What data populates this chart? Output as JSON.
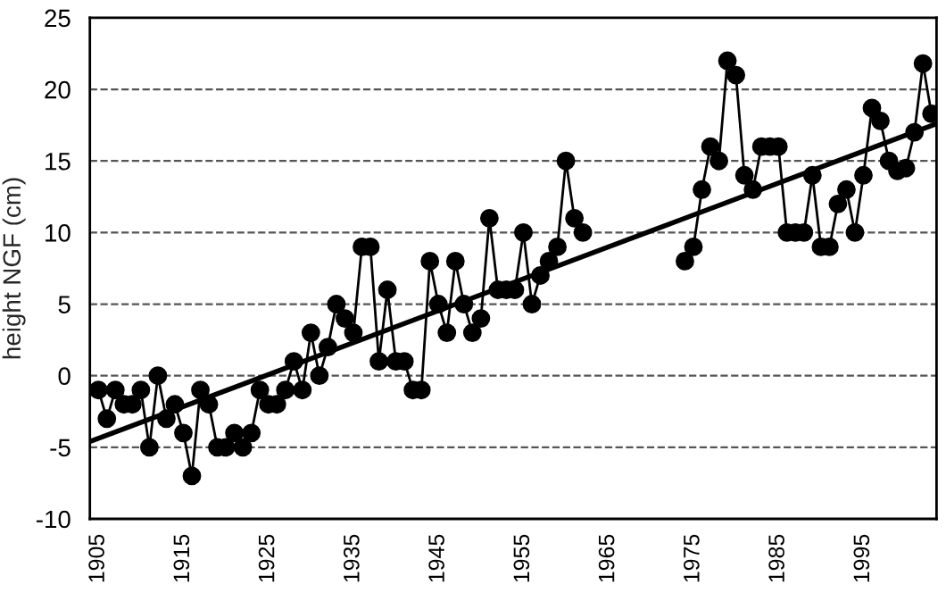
{
  "chart_data": {
    "type": "line",
    "ylabel": "height NGF (cm)",
    "xlim": [
      1904,
      2003.6
    ],
    "xticks": [
      1905,
      1915,
      1925,
      1935,
      1945,
      1955,
      1965,
      1975,
      1985,
      1995
    ],
    "ylim": [
      -10,
      25
    ],
    "yticks": [
      -10,
      -5,
      0,
      5,
      10,
      15,
      20,
      25
    ],
    "grid": "y",
    "marker": "circle",
    "line_style": "solid",
    "series": [
      {
        "color": "#000000",
        "x": [
          1905,
          1906,
          1907,
          1908,
          1909,
          1910,
          1911,
          1912,
          1913,
          1914,
          1915,
          1916,
          1917,
          1918,
          1919,
          1920,
          1921,
          1922,
          1923,
          1924,
          1925,
          1926,
          1927,
          1928,
          1929,
          1930,
          1931,
          1932,
          1933,
          1934,
          1935,
          1936,
          1937,
          1938,
          1939,
          1940,
          1941,
          1942,
          1943,
          1944,
          1945,
          1946,
          1947,
          1948,
          1949,
          1950,
          1951,
          1952,
          1953,
          1954,
          1955,
          1956,
          1957,
          1958,
          1959,
          1960,
          1961,
          1962,
          1963,
          1964,
          1965,
          1966,
          1967,
          1968,
          1969,
          1970,
          1971,
          1972,
          1973,
          1974,
          1975,
          1976,
          1977,
          1978,
          1979,
          1980,
          1981,
          1982,
          1983,
          1984,
          1985,
          1986,
          1987,
          1988,
          1989,
          1990,
          1991,
          1992,
          1993,
          1994,
          1995,
          1996,
          1997,
          1998,
          1999,
          2000,
          2001,
          2002,
          2003
        ],
        "values": [
          -1,
          -3,
          -1,
          -2,
          -2,
          -1,
          -5,
          0,
          -3,
          -2,
          -4,
          -7,
          -1,
          -2,
          -5,
          -5,
          -4,
          -5,
          -4,
          -1,
          -2,
          -2,
          -1,
          1,
          -1,
          3,
          0,
          2,
          5,
          4,
          3,
          9,
          9,
          1,
          6,
          1,
          1,
          -1,
          -1,
          8,
          5,
          3,
          8,
          5,
          3,
          4,
          11,
          6,
          6,
          6,
          10,
          5,
          7,
          8,
          9,
          15,
          11,
          10,
          null,
          null,
          null,
          null,
          null,
          null,
          null,
          null,
          null,
          null,
          null,
          8,
          9,
          13,
          16,
          15,
          22,
          21,
          14,
          13,
          16,
          16,
          16,
          10,
          10,
          10,
          14,
          9,
          9,
          12,
          13,
          10,
          14,
          18.7,
          17.8,
          15,
          14.3,
          14.5,
          17,
          21.8,
          18.3
        ]
      },
      {
        "type": "line",
        "marker": "none",
        "color": "#000000",
        "x": [
          1904,
          2003.6
        ],
        "values": [
          -4.6,
          17.6
        ]
      }
    ]
  }
}
